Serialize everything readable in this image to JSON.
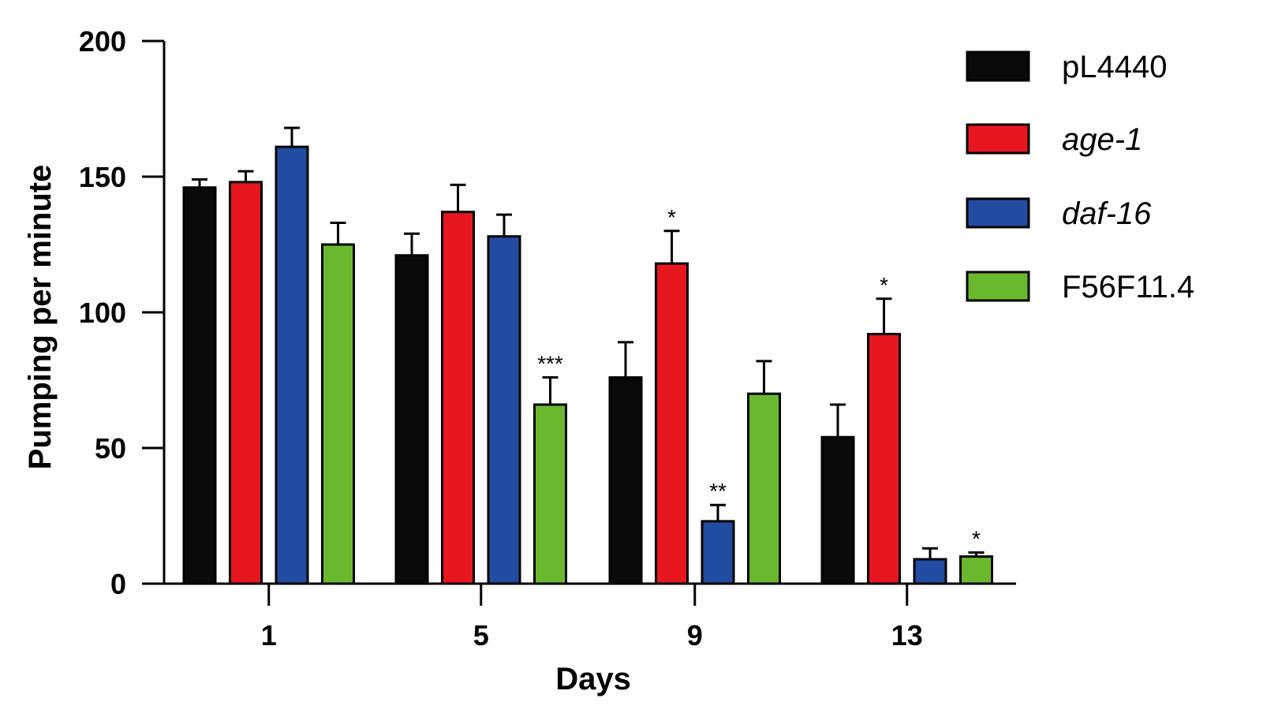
{
  "chart_data": {
    "type": "bar",
    "xlabel": "Days",
    "ylabel": "Pumping per minute",
    "ylim": [
      0,
      200
    ],
    "yticks": [
      "0",
      "50",
      "100",
      "150",
      "200"
    ],
    "categories": [
      "1",
      "5",
      "9",
      "13"
    ],
    "series": [
      {
        "name": "pL4440",
        "italic": false,
        "color": "#0a0a0a",
        "values": [
          146,
          121,
          76,
          54
        ],
        "errors": [
          3,
          8,
          13,
          12
        ],
        "significance": [
          "",
          "",
          "",
          ""
        ]
      },
      {
        "name": "age-1",
        "italic": true,
        "color": "#e8161e",
        "values": [
          148,
          137,
          118,
          92
        ],
        "errors": [
          4,
          10,
          12,
          13
        ],
        "significance": [
          "",
          "",
          "*",
          "*"
        ]
      },
      {
        "name": "daf-16",
        "italic": true,
        "color": "#214ca1",
        "values": [
          161,
          128,
          23,
          9
        ],
        "errors": [
          7,
          8,
          6,
          4
        ],
        "significance": [
          "",
          "",
          "**",
          ""
        ]
      },
      {
        "name": "F56F11.4",
        "italic": false,
        "color": "#6ab82e",
        "values": [
          125,
          66,
          70,
          10
        ],
        "errors": [
          8,
          10,
          12,
          1.5
        ],
        "significance": [
          "",
          "***",
          "",
          "*"
        ]
      }
    ],
    "legend_position": "top-right",
    "grid": false
  }
}
